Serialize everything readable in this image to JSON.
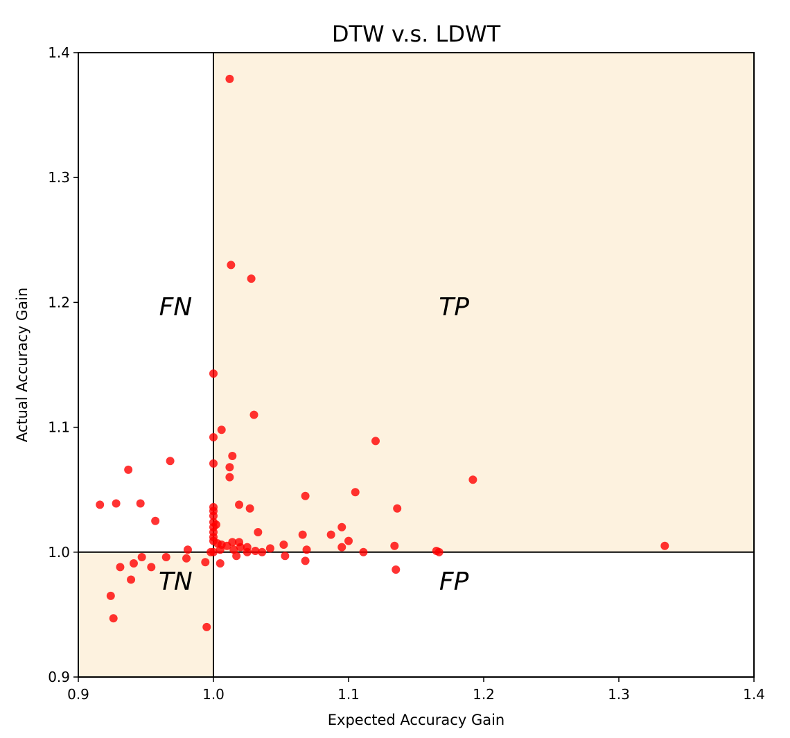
{
  "chart_data": {
    "type": "scatter",
    "title": "DTW v.s. LDWT",
    "xlabel": "Expected Accuracy Gain",
    "ylabel": "Actual Accuracy Gain",
    "xlim": [
      0.9,
      1.4
    ],
    "ylim": [
      0.9,
      1.4
    ],
    "x_ticks": [
      "0.9",
      "1.0",
      "1.1",
      "1.2",
      "1.3",
      "1.4"
    ],
    "y_ticks": [
      "0.9",
      "1.0",
      "1.1",
      "1.2",
      "1.3",
      "1.4"
    ],
    "grid": false,
    "reference_lines": {
      "x": 1.0,
      "y": 1.0
    },
    "shaded_regions": [
      {
        "x": [
          1.0,
          1.4
        ],
        "y": [
          1.0,
          1.4
        ],
        "color": "#fdf2df"
      },
      {
        "x": [
          0.9,
          1.0
        ],
        "y": [
          0.9,
          1.0
        ],
        "color": "#fdf2df"
      }
    ],
    "annotations": [
      {
        "text": "FN",
        "x": 0.972,
        "y": 1.197
      },
      {
        "text": "TP",
        "x": 1.178,
        "y": 1.197
      },
      {
        "text": "TN",
        "x": 0.972,
        "y": 0.977
      },
      {
        "text": "FP",
        "x": 1.178,
        "y": 0.977
      }
    ],
    "marker_color": "#ff0000",
    "series": [
      {
        "points": [
          [
            1.012,
            1.379
          ],
          [
            1.013,
            1.23
          ],
          [
            1.028,
            1.219
          ],
          [
            1.0,
            1.143
          ],
          [
            1.03,
            1.11
          ],
          [
            1.006,
            1.098
          ],
          [
            1.0,
            1.092
          ],
          [
            1.12,
            1.089
          ],
          [
            1.014,
            1.077
          ],
          [
            1.0,
            1.071
          ],
          [
            1.012,
            1.068
          ],
          [
            1.012,
            1.06
          ],
          [
            1.192,
            1.058
          ],
          [
            1.105,
            1.048
          ],
          [
            1.068,
            1.045
          ],
          [
            1.019,
            1.038
          ],
          [
            1.0,
            1.036
          ],
          [
            1.136,
            1.035
          ],
          [
            1.027,
            1.035
          ],
          [
            1.0,
            1.033
          ],
          [
            1.0,
            1.029
          ],
          [
            1.0,
            1.024
          ],
          [
            1.002,
            1.022
          ],
          [
            1.0,
            1.02
          ],
          [
            1.095,
            1.02
          ],
          [
            1.0,
            1.016
          ],
          [
            1.033,
            1.016
          ],
          [
            1.066,
            1.014
          ],
          [
            1.087,
            1.014
          ],
          [
            1.0,
            1.012
          ],
          [
            1.0,
            1.009
          ],
          [
            1.1,
            1.009
          ],
          [
            1.014,
            1.008
          ],
          [
            1.019,
            1.008
          ],
          [
            1.003,
            1.007
          ],
          [
            1.006,
            1.006
          ],
          [
            1.052,
            1.006
          ],
          [
            1.01,
            1.005
          ],
          [
            1.134,
            1.005
          ],
          [
            1.334,
            1.005
          ],
          [
            1.095,
            1.004
          ],
          [
            1.02,
            1.004
          ],
          [
            1.025,
            1.004
          ],
          [
            1.042,
            1.003
          ],
          [
            1.069,
            1.002
          ],
          [
            1.005,
            1.002
          ],
          [
            1.015,
            1.002
          ],
          [
            1.031,
            1.001
          ],
          [
            1.165,
            1.001
          ],
          [
            1.167,
            1.0
          ],
          [
            1.0,
            1.0
          ],
          [
            1.036,
            1.0
          ],
          [
            1.025,
            1.0
          ],
          [
            1.111,
            1.0
          ],
          [
            0.998,
            1.0
          ],
          [
            1.017,
            0.997
          ],
          [
            1.053,
            0.997
          ],
          [
            1.068,
            0.993
          ],
          [
            1.005,
            0.991
          ],
          [
            0.981,
            1.002
          ],
          [
            0.965,
            0.996
          ],
          [
            0.947,
            0.996
          ],
          [
            0.98,
            0.995
          ],
          [
            0.941,
            0.991
          ],
          [
            0.994,
            0.992
          ],
          [
            0.931,
            0.988
          ],
          [
            0.954,
            0.988
          ],
          [
            0.939,
            0.978
          ],
          [
            1.135,
            0.986
          ],
          [
            0.924,
            0.965
          ],
          [
            0.926,
            0.947
          ],
          [
            0.995,
            0.94
          ],
          [
            0.916,
            1.038
          ],
          [
            0.928,
            1.039
          ],
          [
            0.946,
            1.039
          ],
          [
            0.957,
            1.025
          ],
          [
            0.937,
            1.066
          ],
          [
            0.968,
            1.073
          ]
        ]
      }
    ]
  }
}
